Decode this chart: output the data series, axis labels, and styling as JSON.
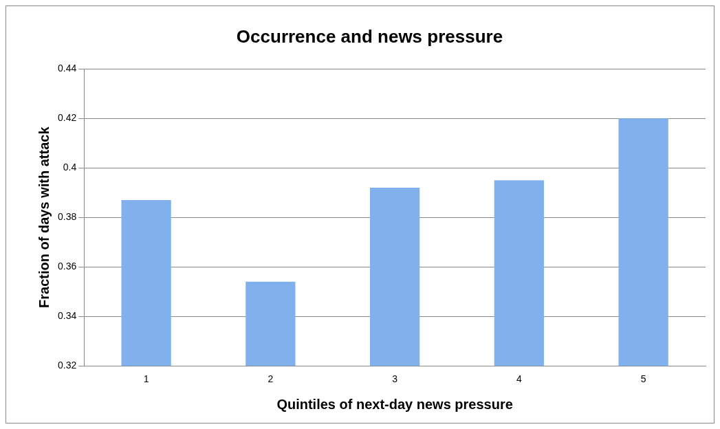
{
  "chart_data": {
    "type": "bar",
    "title": "Occurrence and news pressure",
    "xlabel": "Quintiles of next-day news pressure",
    "ylabel": "Fraction of days with attack",
    "categories": [
      "1",
      "2",
      "3",
      "4",
      "5"
    ],
    "values": [
      0.387,
      0.354,
      0.392,
      0.395,
      0.42
    ],
    "color": "#80b1ec",
    "ylim": [
      0.32,
      0.44
    ],
    "yticks": [
      0.32,
      0.34,
      0.36,
      0.38,
      0.4,
      0.42,
      0.44
    ],
    "grid": "y",
    "legend": false
  }
}
